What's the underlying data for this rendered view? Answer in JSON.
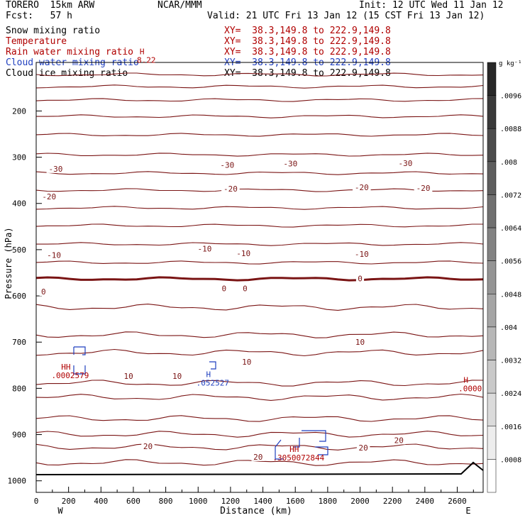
{
  "header": {
    "model": "TORERO  15km ARW",
    "org": "NCAR/MMM",
    "init": "Init: 12 UTC Wed 11 Jan 12",
    "fcst": "Fcst:   57 h",
    "valid": "Valid: 21 UTC Fri 13 Jan 12 (15 CST Fri 13 Jan 12)"
  },
  "legend": [
    {
      "name": "Snow mixing ratio",
      "xy": "XY=  38.3,149.8 to 222.9,149.8",
      "color": "#000000"
    },
    {
      "name": "Temperature",
      "xy": "XY=  38.3,149.8 to 222.9,149.8",
      "color": "#b00000"
    },
    {
      "name": "Rain water mixing ratio",
      "xy": "XY=  38.3,149.8 to 222.9,149.8",
      "color": "#b00000"
    },
    {
      "name": "Cloud water mixing ratio",
      "xy": "XY=  38.3,149.8 to 222.9,149.8",
      "color": "#1f3fbf"
    },
    {
      "name": "Cloud ice mixing ratio",
      "xy": "XY=  38.3,149.8 to 222.9,149.8",
      "color": "#000000"
    }
  ],
  "chart_data": {
    "type": "cross-section",
    "xlabel": "Distance (km)",
    "ylabel": "Pressure (hPa)",
    "x_ticks": [
      0,
      200,
      400,
      600,
      800,
      1000,
      1200,
      1400,
      1600,
      1800,
      2000,
      2200,
      2400,
      2600
    ],
    "xlim": [
      0,
      2760
    ],
    "y_ticks": [
      200,
      300,
      400,
      500,
      600,
      700,
      800,
      900,
      1000
    ],
    "ylim": [
      95,
      1025
    ],
    "x_end_labels": {
      "left": "W",
      "right": "E"
    },
    "colorbar": {
      "unit": "g kg⁻¹",
      "ticks": [
        ".0096",
        ".0088",
        ".008",
        ".0072",
        ".0064",
        ".0056",
        ".0048",
        ".004",
        ".0032",
        ".0024",
        ".0016",
        ".0008"
      ]
    },
    "temperature_contours": [
      {
        "label": "-30",
        "x": 120,
        "p": 325
      },
      {
        "label": "-30",
        "x": 1180,
        "p": 317
      },
      {
        "label": "-30",
        "x": 1570,
        "p": 314
      },
      {
        "label": "-30",
        "x": 2280,
        "p": 313
      },
      {
        "label": "-20",
        "x": 80,
        "p": 385
      },
      {
        "label": "-20",
        "x": 1200,
        "p": 368
      },
      {
        "label": "-20",
        "x": 2010,
        "p": 365
      },
      {
        "label": "-20",
        "x": 2390,
        "p": 367
      },
      {
        "label": "-10",
        "x": 110,
        "p": 512
      },
      {
        "label": "-10",
        "x": 1040,
        "p": 498
      },
      {
        "label": "-10",
        "x": 1280,
        "p": 508
      },
      {
        "label": "-10",
        "x": 2010,
        "p": 509
      },
      {
        "label": "0",
        "x": 45,
        "p": 591
      },
      {
        "label": "0",
        "x": 1160,
        "p": 584
      },
      {
        "label": "0",
        "x": 1290,
        "p": 584
      },
      {
        "label": "0",
        "x": 2000,
        "p": 562
      },
      {
        "label": "10",
        "x": 570,
        "p": 773
      },
      {
        "label": "10",
        "x": 870,
        "p": 773
      },
      {
        "label": "10",
        "x": 1300,
        "p": 743
      },
      {
        "label": "10",
        "x": 2000,
        "p": 700
      },
      {
        "label": "20",
        "x": 690,
        "p": 925
      },
      {
        "label": "20",
        "x": 1370,
        "p": 948
      },
      {
        "label": "20",
        "x": 2020,
        "p": 928
      },
      {
        "label": "20",
        "x": 2240,
        "p": 912
      }
    ],
    "extrema": [
      {
        "mark": "HH",
        "value": ".0002579",
        "x": 210,
        "p": 772
      },
      {
        "mark": "H",
        "value": ".052527",
        "x": 1090,
        "p": 788
      },
      {
        "mark": "H",
        "value": ".0000",
        "x": 2680,
        "p": 800
      },
      {
        "mark": "HH",
        "value": ".3050072844",
        "x": 1620,
        "p": 950
      },
      {
        "mark": "H",
        "value": "8.22",
        "x": 680,
        "p": 90
      }
    ]
  }
}
